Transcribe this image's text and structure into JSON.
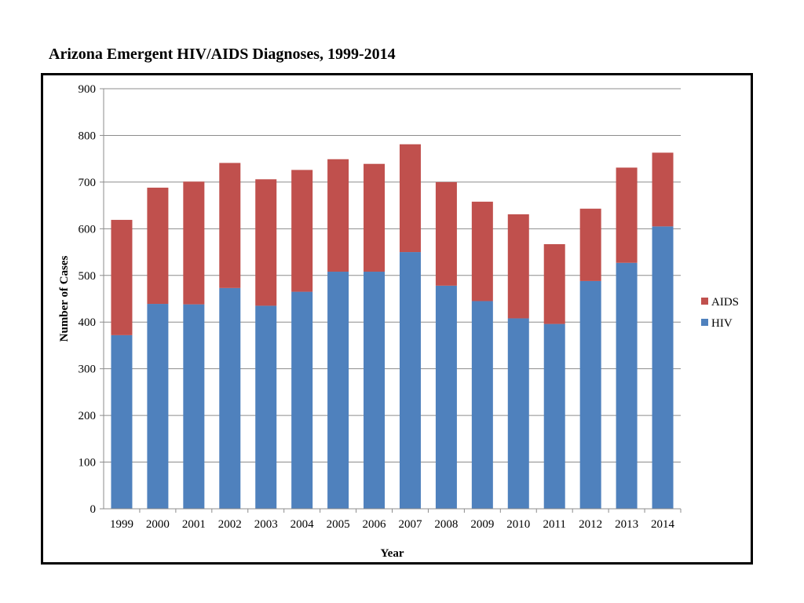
{
  "page": {
    "title": "Arizona Emergent HIV/AIDS Diagnoses, 1999-2014"
  },
  "chart_data": {
    "type": "bar",
    "stacked": true,
    "title": "Arizona Emergent HIV/AIDS Diagnoses, 1999-2014",
    "xlabel": "Year",
    "ylabel": "Number of Cases",
    "ylim": [
      0,
      900
    ],
    "yticks": [
      0,
      100,
      200,
      300,
      400,
      500,
      600,
      700,
      800,
      900
    ],
    "grid": true,
    "legend_position": "right",
    "categories": [
      "1999",
      "2000",
      "2001",
      "2002",
      "2003",
      "2004",
      "2005",
      "2006",
      "2007",
      "2008",
      "2009",
      "2010",
      "2011",
      "2012",
      "2013",
      "2014"
    ],
    "series": [
      {
        "name": "HIV",
        "color": "#4F81BD",
        "values": [
          372,
          439,
          438,
          473,
          435,
          465,
          508,
          508,
          550,
          478,
          445,
          408,
          396,
          488,
          527,
          605
        ]
      },
      {
        "name": "AIDS",
        "color": "#C0504D",
        "values": [
          247,
          249,
          263,
          268,
          271,
          261,
          241,
          231,
          231,
          222,
          213,
          223,
          171,
          155,
          204,
          158
        ]
      }
    ],
    "legend": [
      {
        "name": "AIDS",
        "color": "#C0504D"
      },
      {
        "name": "HIV",
        "color": "#4F81BD"
      }
    ]
  }
}
